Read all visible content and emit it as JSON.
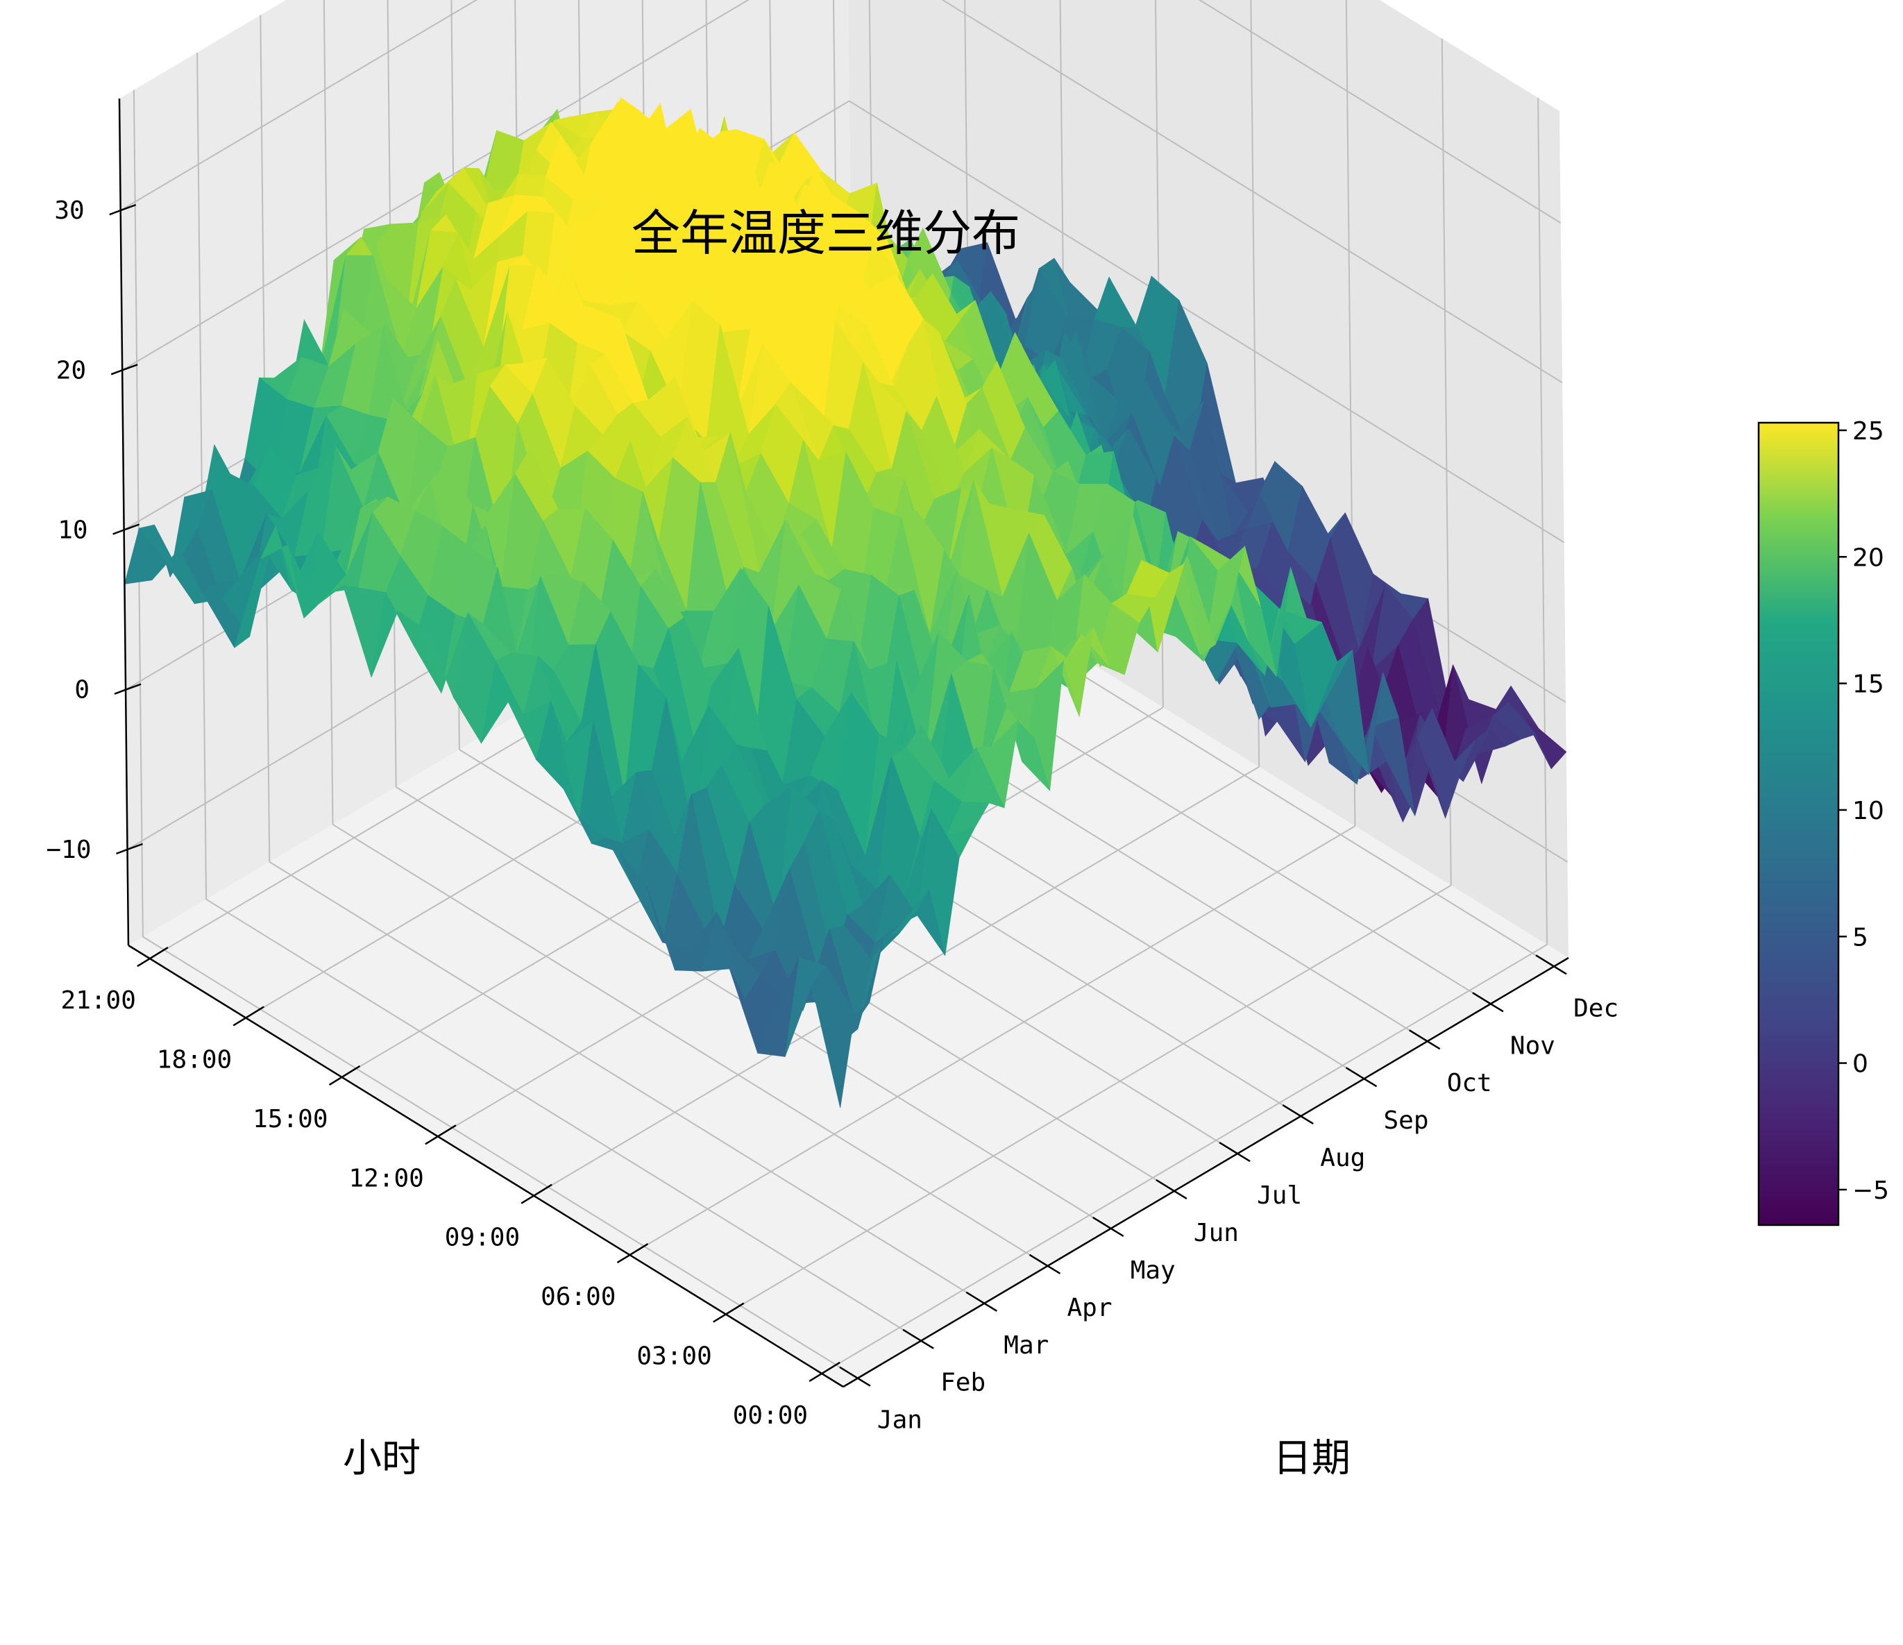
{
  "chart_data": {
    "type": "surface3d",
    "title": "全年温度三维分布",
    "xlabel": "日期",
    "ylabel": "小时",
    "zlabel": "",
    "x_ticks": [
      "Jan",
      "Feb",
      "Mar",
      "Apr",
      "May",
      "Jun",
      "Jul",
      "Aug",
      "Sep",
      "Oct",
      "Nov",
      "Dec"
    ],
    "y_ticks": [
      "00:00",
      "03:00",
      "06:00",
      "09:00",
      "12:00",
      "15:00",
      "18:00",
      "21:00"
    ],
    "z_ticks": [
      -10,
      0,
      10,
      20,
      30
    ],
    "zlim": [
      -16,
      37
    ],
    "colormap": "viridis",
    "colorbar": {
      "ticks": [
        -5,
        0,
        5,
        10,
        15,
        20,
        25
      ],
      "range": [
        -6.4,
        25.3
      ]
    },
    "grid": true,
    "surface_summary": {
      "months": [
        "Jan",
        "Feb",
        "Mar",
        "Apr",
        "May",
        "Jun",
        "Jul",
        "Aug",
        "Sep",
        "Oct",
        "Nov",
        "Dec"
      ],
      "approx_daily_mean": [
        9,
        12,
        16,
        20,
        22,
        24,
        22,
        18,
        10,
        4,
        1,
        2
      ],
      "approx_diurnal_amplitude": 5,
      "noise_amplitude": 4
    }
  }
}
